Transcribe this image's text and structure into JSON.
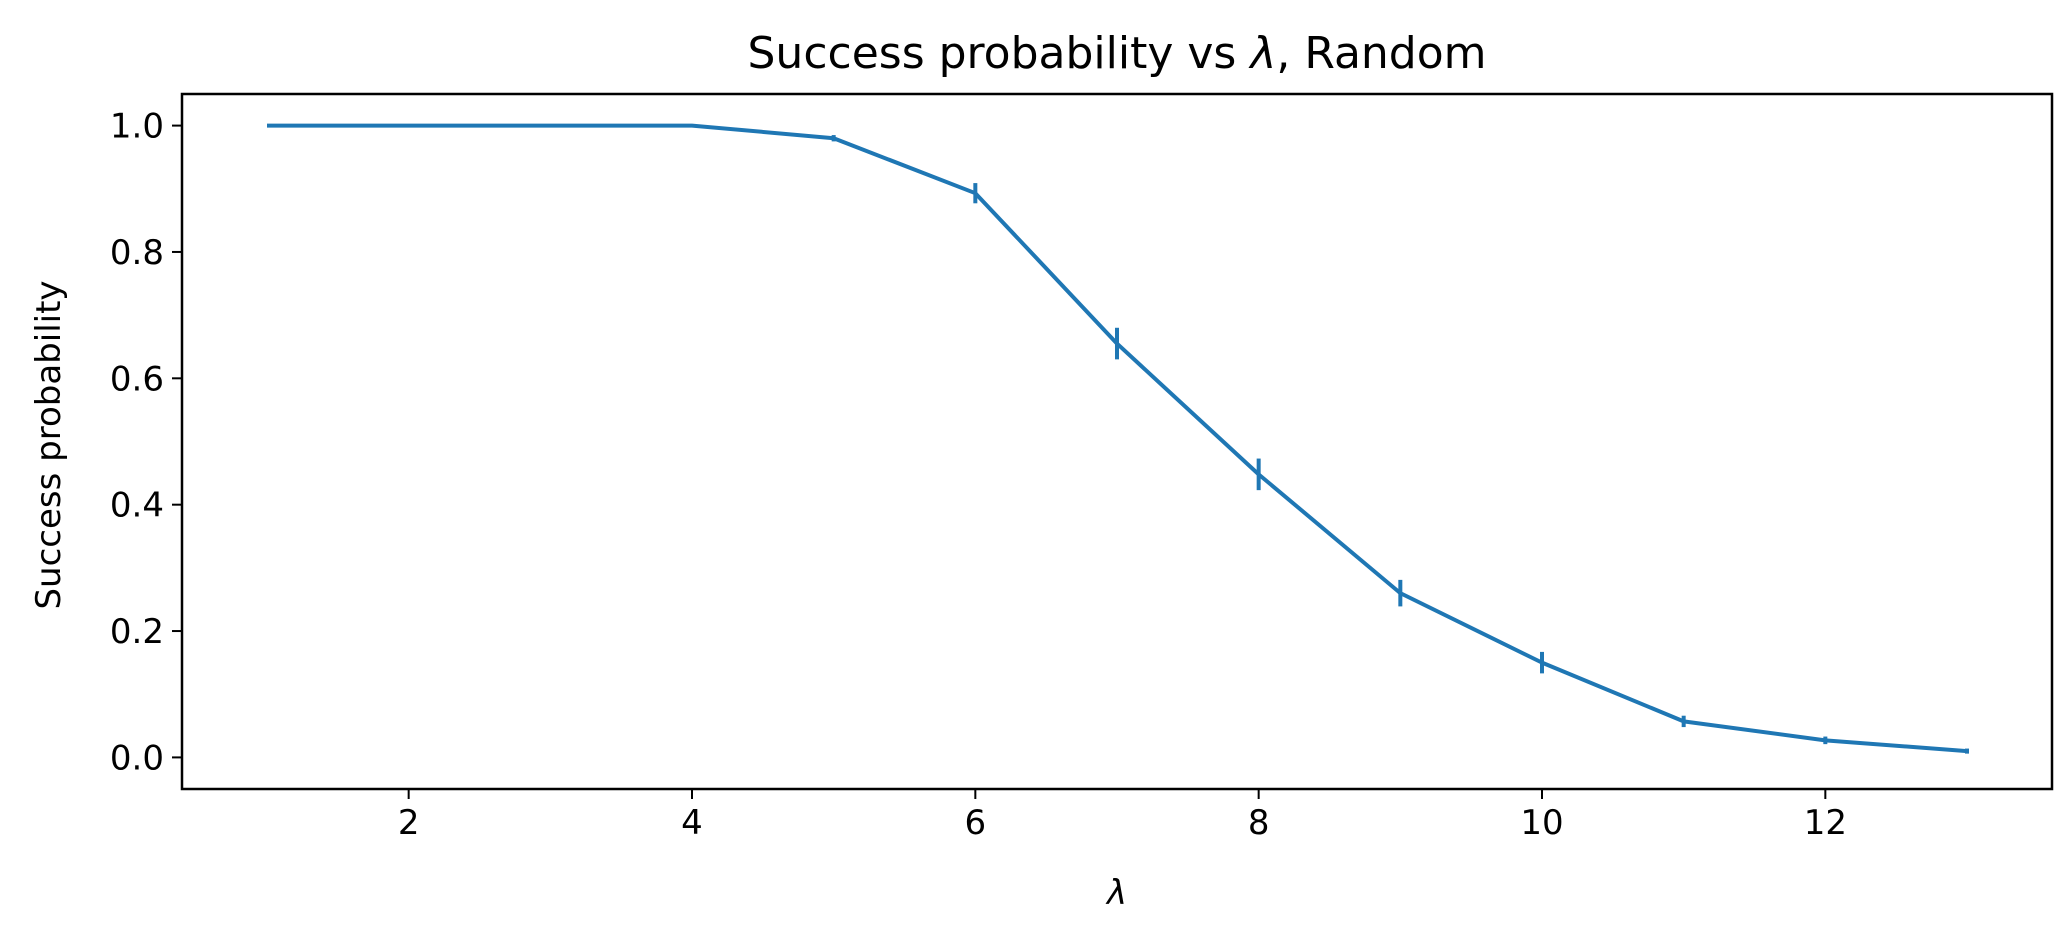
{
  "chart_data": {
    "type": "line",
    "title_main": "Success probability vs ",
    "title_symbol": "λ",
    "title_suffix": ", Random",
    "xlabel": "λ",
    "ylabel": "Success probability",
    "xlim": [
      0.4,
      13.6
    ],
    "ylim": [
      -0.05,
      1.05
    ],
    "xticks": [
      2,
      4,
      6,
      8,
      10,
      12
    ],
    "yticks": [
      0.0,
      0.2,
      0.4,
      0.6,
      0.8,
      1.0
    ],
    "xtick_labels": [
      "2",
      "4",
      "6",
      "8",
      "10",
      "12"
    ],
    "ytick_labels": [
      "0.0",
      "0.2",
      "0.4",
      "0.6",
      "0.8",
      "1.0"
    ],
    "grid": false,
    "legend": false,
    "series": [
      {
        "color": "#1f77b4",
        "x": [
          1,
          2,
          3,
          4,
          5,
          6,
          7,
          8,
          9,
          10,
          11,
          12,
          13
        ],
        "y": [
          1.0,
          1.0,
          1.0,
          1.0,
          0.98,
          0.893,
          0.655,
          0.448,
          0.26,
          0.15,
          0.057,
          0.027,
          0.01
        ],
        "yerr": [
          0.0,
          0.0,
          0.0,
          0.0,
          0.005,
          0.016,
          0.025,
          0.025,
          0.021,
          0.017,
          0.009,
          0.006,
          0.004
        ]
      }
    ]
  }
}
